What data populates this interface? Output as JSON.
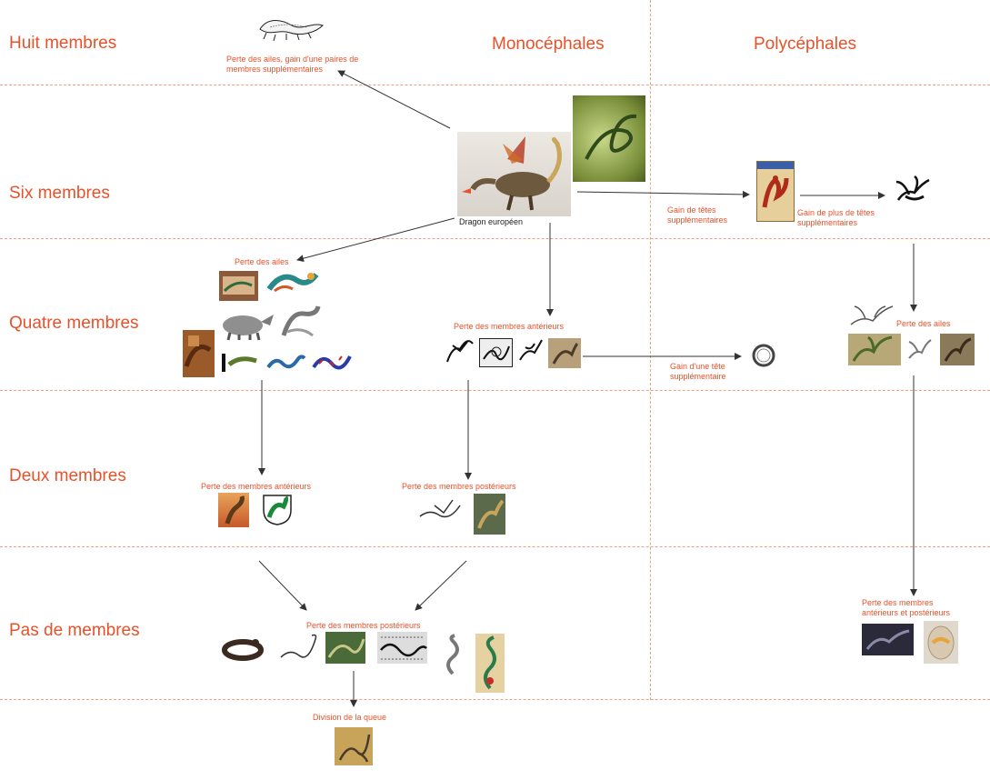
{
  "rows": {
    "huit": "Huit membres",
    "six": "Six membres",
    "quatre": "Quatre membres",
    "deux": "Deux membres",
    "pas": "Pas de membres"
  },
  "columns": {
    "mono": "Monocéphales",
    "poly": "Polycéphales"
  },
  "center_caption": "Dragon européen",
  "transitions": {
    "wings_extra_limbs": "Perte des ailes, gain d'une paires de membres supplémentaires",
    "loss_wings_1": "Perte des ailes",
    "loss_front_limbs_1": "Perte des membres antérieurs",
    "gain_heads": "Gain de têtes supplémentaires",
    "gain_more_heads": "Gain de plus de têtes supplémentaires",
    "gain_one_head": "Gain d'une tête supplémentaire",
    "loss_wings_2": "Perte des ailes",
    "loss_front_limbs_2": "Perte des membres antérieurs",
    "loss_hind_limbs_1": "Perte des membres postérieurs",
    "loss_hind_limbs_2": "Perte des membres postérieurs",
    "loss_all_limbs": "Perte des membres antérieurs et postérieurs",
    "tail_division": "Division de la queue"
  },
  "colors": {
    "accent": "#e8512a",
    "divider": "#f0a080",
    "arrow": "#333333"
  }
}
